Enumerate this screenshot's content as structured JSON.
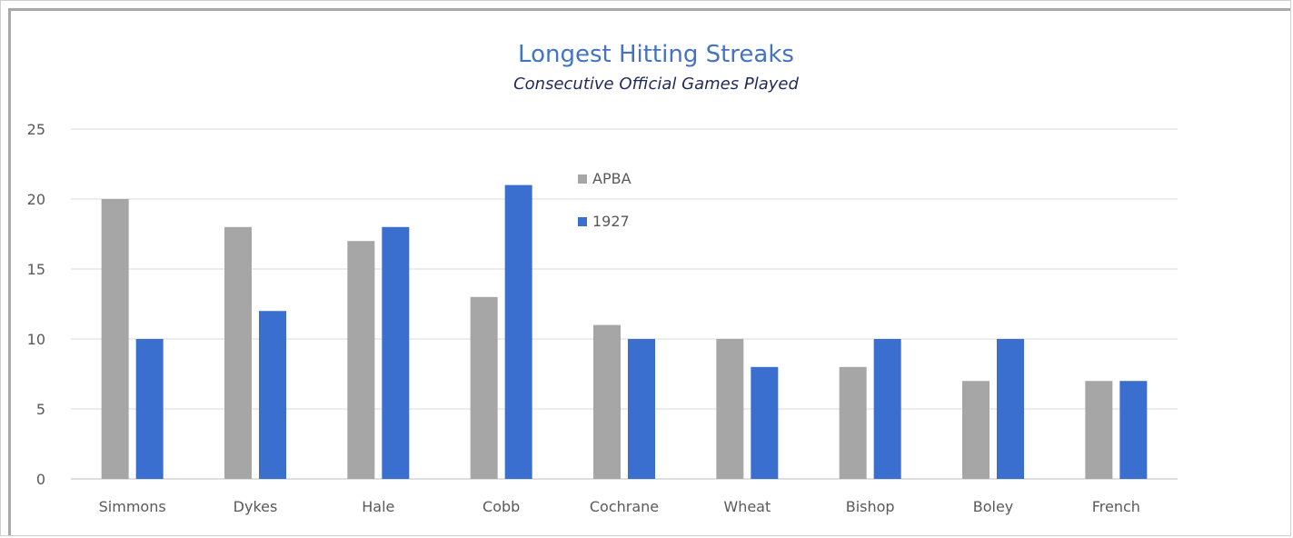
{
  "chart_data": {
    "type": "bar",
    "title": "Longest Hitting Streaks",
    "subtitle": "Consecutive Official Games Played",
    "xlabel": "",
    "ylabel": "",
    "categories": [
      "Simmons",
      "Dykes",
      "Hale",
      "Cobb",
      "Cochrane",
      "Wheat",
      "Bishop",
      "Boley",
      "French"
    ],
    "series": [
      {
        "name": "APBA",
        "color": "#a6a6a6",
        "values": [
          20,
          18,
          17,
          13,
          11,
          10,
          8,
          7,
          7
        ]
      },
      {
        "name": "1927",
        "color": "#3a6fd0",
        "values": [
          10,
          12,
          18,
          21,
          10,
          8,
          10,
          10,
          7
        ]
      }
    ],
    "ylim": [
      0,
      25
    ],
    "yticks": [
      0,
      5,
      10,
      15,
      20,
      25
    ],
    "grid": true,
    "legend_position": "inside-top-center"
  }
}
